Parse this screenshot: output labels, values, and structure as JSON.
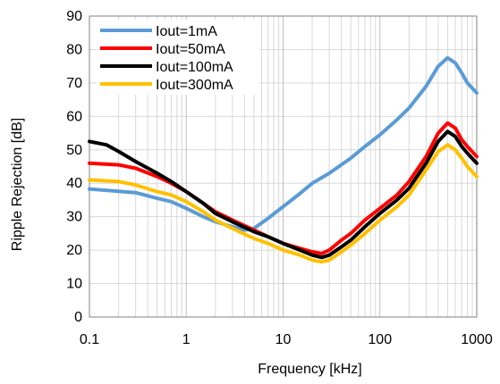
{
  "chart_data": {
    "type": "line",
    "xlabel": "Frequency [kHz]",
    "ylabel": "Ripple Rejection  [dB]",
    "x_scale": "log",
    "xlim": [
      0.1,
      1000
    ],
    "ylim": [
      0,
      90
    ],
    "x_ticks": [
      0.1,
      1,
      10,
      100,
      1000
    ],
    "x_tick_labels": [
      "0.1",
      "1",
      "10",
      "100",
      "1000"
    ],
    "y_ticks": [
      0,
      10,
      20,
      30,
      40,
      50,
      60,
      70,
      80,
      90
    ],
    "y_tick_labels": [
      "0",
      "10",
      "20",
      "30",
      "40",
      "50",
      "60",
      "70",
      "80",
      "90"
    ],
    "grid": true,
    "legend_position": "top-left",
    "series": [
      {
        "name": "Iout=1mA",
        "color": "#5b9bd5",
        "points": [
          [
            0.1,
            38.3
          ],
          [
            0.2,
            37.6
          ],
          [
            0.3,
            37.2
          ],
          [
            0.5,
            35.5
          ],
          [
            0.7,
            34.5
          ],
          [
            1,
            32.5
          ],
          [
            1.5,
            30
          ],
          [
            2,
            28.5
          ],
          [
            3,
            27
          ],
          [
            4,
            26
          ],
          [
            5,
            26.5
          ],
          [
            7,
            29.5
          ],
          [
            10,
            33
          ],
          [
            15,
            37
          ],
          [
            20,
            40
          ],
          [
            30,
            43
          ],
          [
            50,
            47.5
          ],
          [
            70,
            51
          ],
          [
            100,
            54.5
          ],
          [
            150,
            59
          ],
          [
            200,
            62.5
          ],
          [
            300,
            69
          ],
          [
            400,
            75
          ],
          [
            500,
            77.5
          ],
          [
            600,
            76
          ],
          [
            700,
            73
          ],
          [
            800,
            70
          ],
          [
            1000,
            67
          ]
        ]
      },
      {
        "name": "Iout=50mA",
        "color": "#ff0000",
        "points": [
          [
            0.1,
            46
          ],
          [
            0.2,
            45.5
          ],
          [
            0.3,
            44.5
          ],
          [
            0.5,
            42
          ],
          [
            0.7,
            40
          ],
          [
            1,
            37.5
          ],
          [
            1.5,
            34
          ],
          [
            2,
            31.5
          ],
          [
            3,
            29
          ],
          [
            5,
            26
          ],
          [
            7,
            24
          ],
          [
            10,
            22
          ],
          [
            15,
            20.5
          ],
          [
            20,
            19.5
          ],
          [
            25,
            19
          ],
          [
            30,
            20
          ],
          [
            40,
            23
          ],
          [
            50,
            25
          ],
          [
            70,
            29
          ],
          [
            100,
            32.5
          ],
          [
            150,
            36.5
          ],
          [
            200,
            40.5
          ],
          [
            300,
            48
          ],
          [
            400,
            55
          ],
          [
            500,
            58
          ],
          [
            600,
            56.5
          ],
          [
            700,
            53
          ],
          [
            800,
            51
          ],
          [
            1000,
            48
          ]
        ]
      },
      {
        "name": "Iout=100mA",
        "color": "#000000",
        "points": [
          [
            0.1,
            52.5
          ],
          [
            0.15,
            51.5
          ],
          [
            0.2,
            49.5
          ],
          [
            0.3,
            46.5
          ],
          [
            0.5,
            43
          ],
          [
            0.7,
            40.5
          ],
          [
            1,
            37.5
          ],
          [
            1.5,
            34
          ],
          [
            2,
            31
          ],
          [
            3,
            28.5
          ],
          [
            5,
            25.5
          ],
          [
            7,
            24
          ],
          [
            10,
            22
          ],
          [
            15,
            20
          ],
          [
            20,
            18.5
          ],
          [
            25,
            17.8
          ],
          [
            30,
            18.5
          ],
          [
            40,
            21
          ],
          [
            50,
            23
          ],
          [
            70,
            27
          ],
          [
            100,
            31
          ],
          [
            150,
            35
          ],
          [
            200,
            38.5
          ],
          [
            300,
            46
          ],
          [
            400,
            52.5
          ],
          [
            500,
            55.5
          ],
          [
            600,
            54
          ],
          [
            700,
            51
          ],
          [
            800,
            49
          ],
          [
            1000,
            46
          ]
        ]
      },
      {
        "name": "Iout=300mA",
        "color": "#ffc000",
        "points": [
          [
            0.1,
            41
          ],
          [
            0.2,
            40.5
          ],
          [
            0.3,
            39.5
          ],
          [
            0.5,
            37.5
          ],
          [
            0.7,
            36.5
          ],
          [
            1,
            34.5
          ],
          [
            1.5,
            31.5
          ],
          [
            2,
            29
          ],
          [
            3,
            26.5
          ],
          [
            5,
            23.5
          ],
          [
            7,
            22
          ],
          [
            10,
            20
          ],
          [
            15,
            18.5
          ],
          [
            20,
            17
          ],
          [
            25,
            16.5
          ],
          [
            30,
            17
          ],
          [
            40,
            19.5
          ],
          [
            50,
            21.5
          ],
          [
            70,
            25
          ],
          [
            100,
            29
          ],
          [
            150,
            33
          ],
          [
            200,
            36.5
          ],
          [
            300,
            44
          ],
          [
            400,
            49.5
          ],
          [
            500,
            51.5
          ],
          [
            600,
            50
          ],
          [
            700,
            47.5
          ],
          [
            800,
            45
          ],
          [
            1000,
            42
          ]
        ]
      }
    ]
  }
}
